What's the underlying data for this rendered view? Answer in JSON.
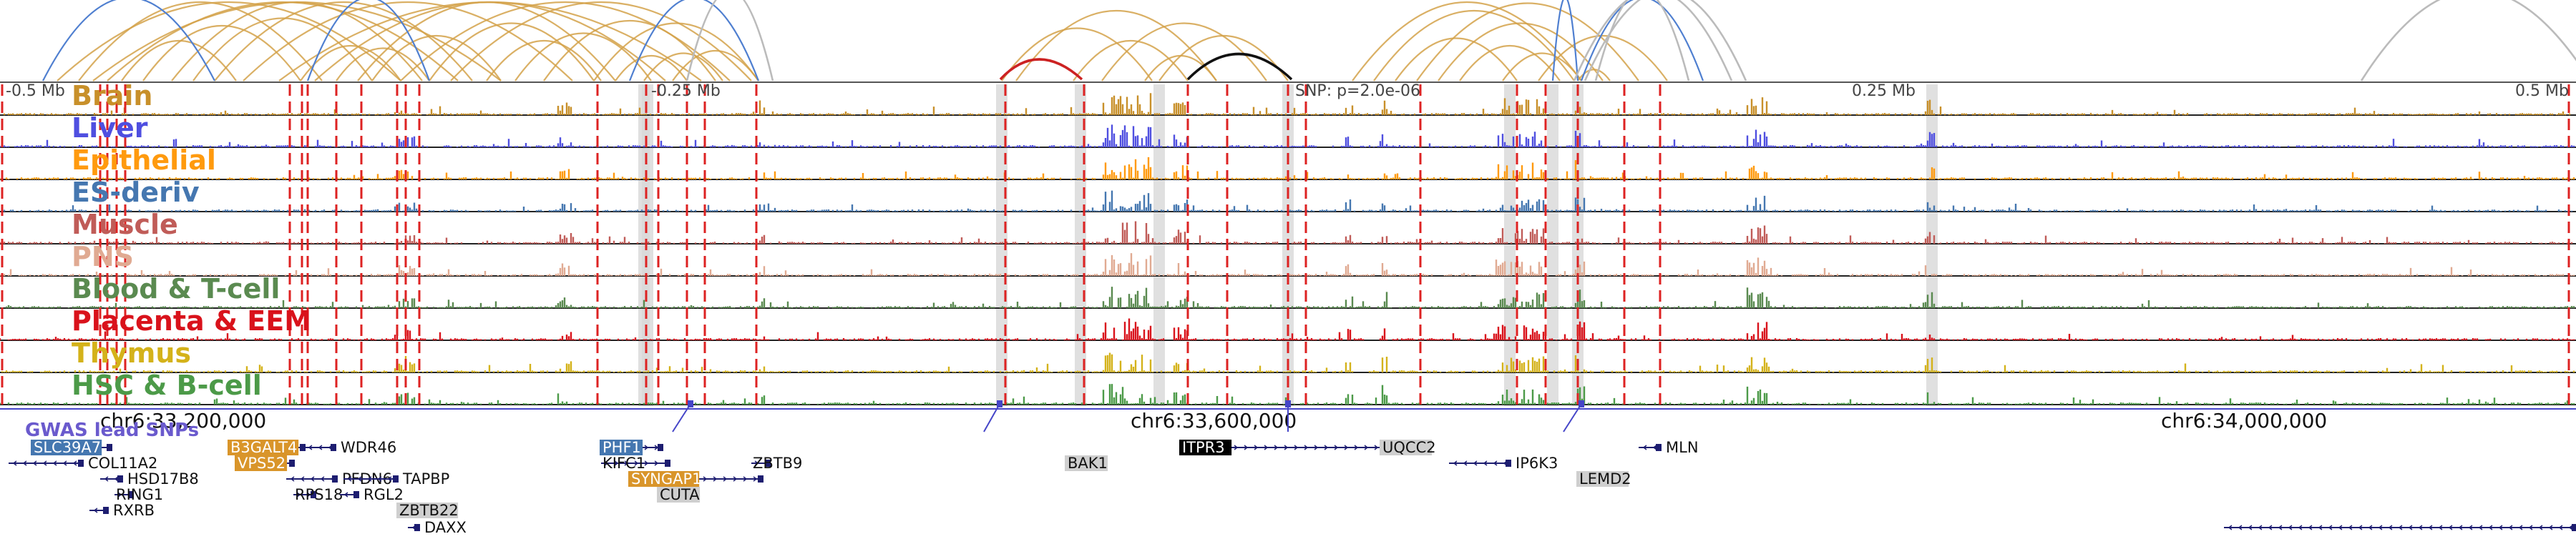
{
  "scale_bar": {
    "left_label": "-0.5 Mb",
    "mid_left_label": "-0.25 Mb",
    "snp_label": "SNP: p=2.0e-06",
    "mid_right_label": "0.25 Mb",
    "right_label": "0.5 Mb"
  },
  "tracks": [
    {
      "name": "Brain",
      "color": "#c8902a"
    },
    {
      "name": "Liver",
      "color": "#4f4fe0"
    },
    {
      "name": "Epithelial",
      "color": "#ff9a0e"
    },
    {
      "name": "ES-deriv",
      "color": "#4577b0"
    },
    {
      "name": "Muscle",
      "color": "#c05c58"
    },
    {
      "name": "PNS",
      "color": "#e0aa92"
    },
    {
      "name": "Blood & T-cell",
      "color": "#5a8a50"
    },
    {
      "name": "Placenta & EEM",
      "color": "#d9121b"
    },
    {
      "name": "Thymus",
      "color": "#d4b21a"
    },
    {
      "name": "HSC & B-cell",
      "color": "#4c9a48"
    }
  ],
  "coordinates": {
    "left": "chr6:33,200,000",
    "center": "chr6:33,600,000",
    "right": "chr6:34,000,000"
  },
  "gwas_label": "GWAS lead SNPs",
  "genes": [
    {
      "name": "SLC39A7",
      "style": "blue",
      "row": 0,
      "start": 45,
      "end": 155,
      "strand": "-"
    },
    {
      "name": "COL11A2",
      "style": "plain",
      "row": 1,
      "start": 12,
      "end": 115,
      "strand": "-"
    },
    {
      "name": "HSD17B8",
      "style": "plain",
      "row": 2,
      "start": 140,
      "end": 170,
      "strand": "-"
    },
    {
      "name": "RING1",
      "style": "plain",
      "row": 3,
      "start": 160,
      "end": 185,
      "strand": "+"
    },
    {
      "name": "RXRB",
      "style": "plain",
      "row": 4,
      "start": 125,
      "end": 150,
      "strand": "-"
    },
    {
      "name": "B3GALT4",
      "style": "orange",
      "row": 0,
      "start": 320,
      "end": 425,
      "strand": "+"
    },
    {
      "name": "WDR46",
      "style": "plain",
      "row": 0,
      "start": 425,
      "end": 468,
      "strand": "-"
    },
    {
      "name": "VPS52",
      "style": "orange",
      "row": 1,
      "start": 330,
      "end": 410,
      "strand": "-"
    },
    {
      "name": "PFDN6",
      "style": "plain",
      "row": 2,
      "start": 400,
      "end": 470,
      "strand": "-"
    },
    {
      "name": "TAPBP",
      "style": "plain",
      "row": 2,
      "start": 480,
      "end": 555,
      "strand": "-"
    },
    {
      "name": "RPS18",
      "style": "plain",
      "row": 3,
      "start": 410,
      "end": 440,
      "strand": "+"
    },
    {
      "name": "RGL2",
      "style": "plain",
      "row": 3,
      "start": 475,
      "end": 500,
      "strand": "-"
    },
    {
      "name": "ZBTB22",
      "style": "gray",
      "row": 4,
      "start": 556,
      "end": 570,
      "strand": "+"
    },
    {
      "name": "DAXX",
      "style": "plain",
      "row": 5,
      "start": 570,
      "end": 585,
      "strand": "-"
    },
    {
      "name": "PHF1",
      "style": "blue",
      "row": 0,
      "start": 840,
      "end": 925,
      "strand": "+"
    },
    {
      "name": "KIFC1",
      "style": "plain",
      "row": 1,
      "start": 840,
      "end": 935,
      "strand": "+"
    },
    {
      "name": "ZBTB9",
      "style": "plain",
      "row": 1,
      "start": 1050,
      "end": 1075,
      "strand": "+"
    },
    {
      "name": "SYNGAP1",
      "style": "orange",
      "row": 2,
      "start": 880,
      "end": 1065,
      "strand": "+"
    },
    {
      "name": "CUTA",
      "style": "gray",
      "row": 3,
      "start": 920,
      "end": 935,
      "strand": "-"
    },
    {
      "name": "BAK1",
      "style": "gray",
      "row": 1,
      "start": 1490,
      "end": 1515,
      "strand": "-"
    },
    {
      "name": "ITPR3",
      "style": "black",
      "row": 0,
      "start": 1650,
      "end": 1990,
      "strand": "+"
    },
    {
      "name": "UQCC2",
      "style": "gray",
      "row": 0,
      "start": 1930,
      "end": 1990,
      "strand": "-"
    },
    {
      "name": "IP6K3",
      "style": "plain",
      "row": 1,
      "start": 2025,
      "end": 2110,
      "strand": "-"
    },
    {
      "name": "LEMD2",
      "style": "gray",
      "row": 2,
      "start": 2205,
      "end": 2265,
      "strand": "-"
    },
    {
      "name": "MLN",
      "style": "plain",
      "row": 0,
      "start": 2290,
      "end": 2320,
      "strand": "-"
    },
    {
      "name": "",
      "style": "plain",
      "row": 5,
      "start": 3108,
      "end": 3600,
      "strand": "-"
    }
  ],
  "colors": {
    "arc_gold": "#d4a24a",
    "arc_blue": "#4f7fd0",
    "arc_gray": "#bbbbbb",
    "arc_red": "#cc2222",
    "arc_black": "#111111",
    "gwas_line": "#4545c8",
    "dashed_red": "#dd2222",
    "highlight_gray": "#d8d8d8"
  }
}
